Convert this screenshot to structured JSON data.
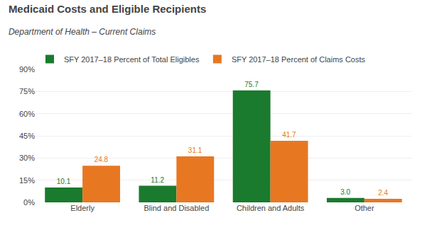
{
  "chart_data": {
    "type": "bar",
    "title": "Medicaid Costs and Eligible Recipients",
    "subtitle": "Department of Health – Current Claims",
    "categories": [
      "Elderly",
      "Blind and Disabled",
      "Children and Adults",
      "Other"
    ],
    "series": [
      {
        "name": "SFY 2017–18 Percent of Total Eligibles",
        "color": "#1a7a2e",
        "values": [
          10.1,
          11.2,
          75.7,
          3.0
        ],
        "value_labels": [
          "10.1",
          "11.2",
          "75.7",
          "3.0"
        ]
      },
      {
        "name": "SFY 2017–18 Percent of Claims Costs",
        "color": "#e87722",
        "values": [
          24.8,
          31.1,
          41.7,
          2.4
        ]
      }
    ],
    "ylim": [
      0,
      90
    ],
    "yticks": [
      {
        "value": 0,
        "label": "0%"
      },
      {
        "value": 15,
        "label": "15%"
      },
      {
        "value": 30,
        "label": "30%"
      },
      {
        "value": 45,
        "label": "45%"
      },
      {
        "value": 60,
        "label": "60%"
      },
      {
        "value": 75,
        "label": "75%"
      },
      {
        "value": 90,
        "label": "90%"
      }
    ],
    "grid": true,
    "legend": "top",
    "data_labels": true
  }
}
